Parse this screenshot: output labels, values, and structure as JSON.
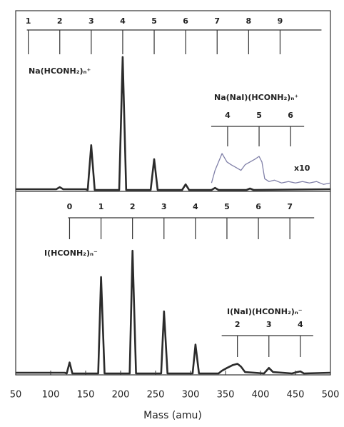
{
  "chart_data": [
    {
      "type": "line",
      "label": "Na(HCONH₂)ₙ⁺",
      "annotation": "x10",
      "xlim": [
        50,
        500
      ],
      "ylim": [
        0,
        100
      ],
      "series": [
        {
          "color": "#2b2b2b",
          "x": [
            50,
            100,
            108,
            113,
            118,
            150,
            153,
            158,
            163,
            185,
            198,
            203,
            208,
            240,
            243,
            248,
            253,
            280,
            288,
            293,
            298,
            330,
            335,
            340,
            380,
            385,
            390,
            500
          ],
          "values": [
            0.5,
            0.5,
            0.5,
            2,
            0.5,
            0.5,
            0,
            32,
            0,
            0,
            0,
            95,
            0,
            0,
            0,
            22,
            0,
            0,
            0,
            4,
            0,
            0,
            1.5,
            0,
            0,
            1,
            0,
            0.5
          ]
        },
        {
          "color": "#8080a8",
          "x": [
            330,
            335,
            345,
            352,
            358,
            365,
            372,
            378,
            385,
            392,
            398,
            402,
            406,
            412,
            420,
            430,
            440,
            450,
            460,
            470,
            480,
            490,
            500
          ],
          "values": [
            5,
            14,
            26,
            20,
            18,
            16,
            14,
            18,
            20,
            22,
            24,
            20,
            8,
            6,
            7,
            5,
            6,
            5,
            6,
            5,
            6,
            4,
            5
          ]
        }
      ],
      "ladders": [
        {
          "ticks": [
            {
              "value": 68,
              "label": "1"
            },
            {
              "value": 113,
              "label": "2"
            },
            {
              "value": 158,
              "label": "3"
            },
            {
              "value": 203,
              "label": "4"
            },
            {
              "value": 248,
              "label": "5"
            },
            {
              "value": 293,
              "label": "6"
            },
            {
              "value": 338,
              "label": "7"
            },
            {
              "value": 383,
              "label": "8"
            },
            {
              "value": 428,
              "label": "9"
            }
          ]
        },
        {
          "label": "Na(NaI)(HCONH₂)ₙ⁺",
          "ticks": [
            {
              "value": 353,
              "label": "4"
            },
            {
              "value": 398,
              "label": "5"
            },
            {
              "value": 443,
              "label": "6"
            }
          ]
        }
      ]
    },
    {
      "type": "line",
      "label": "I(HCONH₂)ₙ⁻",
      "xlabel": "Mass (amu)",
      "xlim": [
        50,
        500
      ],
      "xticks": [
        50,
        100,
        150,
        200,
        250,
        300,
        350,
        400,
        450,
        500
      ],
      "ylim": [
        0,
        100
      ],
      "series": [
        {
          "color": "#2b2b2b",
          "x": [
            50,
            120,
            123,
            127,
            131,
            165,
            168,
            172,
            177,
            210,
            213,
            217,
            222,
            255,
            258,
            262,
            267,
            300,
            303,
            307,
            312,
            340,
            345,
            352,
            360,
            367,
            372,
            378,
            405,
            412,
            418,
            445,
            452,
            457,
            462,
            500
          ],
          "values": [
            0.5,
            0.5,
            0,
            8,
            0,
            0,
            0,
            70,
            0,
            0,
            0,
            89,
            0,
            0,
            0,
            45,
            0,
            0,
            0,
            21,
            0,
            0,
            2,
            4,
            6,
            7,
            5,
            1,
            0,
            4,
            1,
            0,
            1,
            1.5,
            0,
            0.5
          ]
        }
      ],
      "ladders": [
        {
          "ticks": [
            {
              "value": 127,
              "label": "0"
            },
            {
              "value": 172,
              "label": "1"
            },
            {
              "value": 217,
              "label": "2"
            },
            {
              "value": 262,
              "label": "3"
            },
            {
              "value": 307,
              "label": "4"
            },
            {
              "value": 352,
              "label": "5"
            },
            {
              "value": 397,
              "label": "6"
            },
            {
              "value": 442,
              "label": "7"
            }
          ]
        },
        {
          "label": "I(NaI)(HCONH₂)ₙ⁻",
          "ticks": [
            {
              "value": 367,
              "label": "2"
            },
            {
              "value": 412,
              "label": "3"
            },
            {
              "value": 457,
              "label": "4"
            }
          ]
        }
      ]
    }
  ]
}
